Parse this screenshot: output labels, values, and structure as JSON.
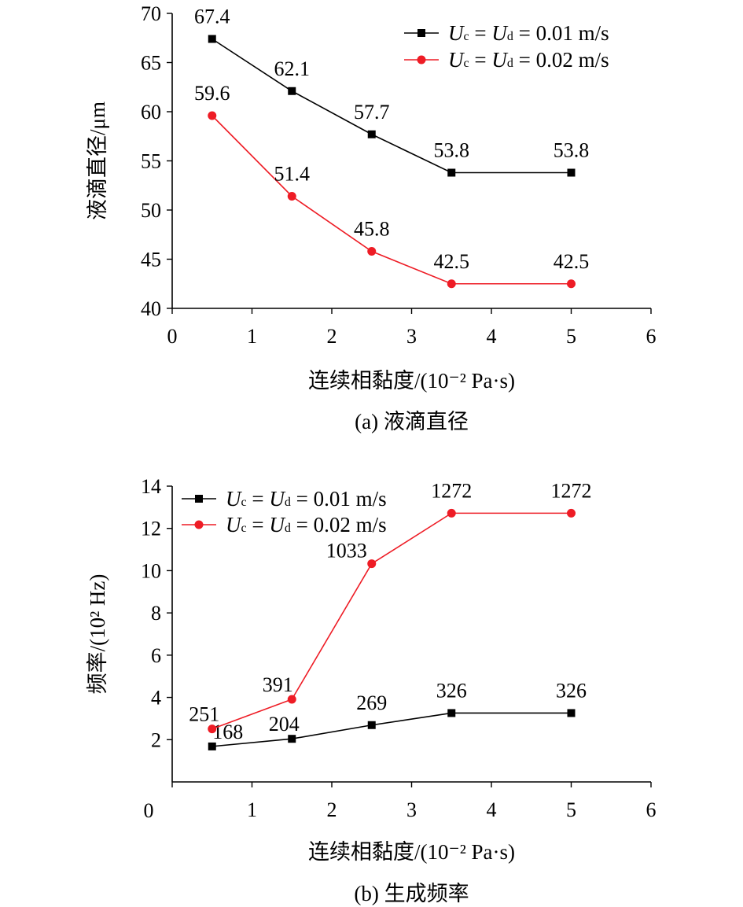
{
  "chart_data": [
    {
      "id": "a",
      "type": "line",
      "caption": "(a) 液滴直径",
      "xlabel": "连续相黏度/(10⁻² Pa·s)",
      "ylabel": "液滴直径/μm",
      "xlim": [
        0,
        6
      ],
      "ylim": [
        40,
        70
      ],
      "xticks": [
        0,
        1,
        2,
        3,
        4,
        5,
        6
      ],
      "yticks": [
        40,
        45,
        50,
        55,
        60,
        65,
        70
      ],
      "legend_position": "top-right",
      "x": [
        0.5,
        1.5,
        2.5,
        3.5,
        5
      ],
      "series": [
        {
          "key": "s1",
          "name": "U<sub>c</sub> = U<sub>d</sub> = 0.01 m/s",
          "legend_parts": [
            "U",
            "c",
            " = ",
            "U",
            "d",
            " = 0.01 m/s"
          ],
          "color": "#000000",
          "marker": "square",
          "values": [
            67.4,
            62.1,
            57.7,
            53.8,
            53.8
          ],
          "labels": [
            "67.4",
            "62.1",
            "57.7",
            "53.8",
            "53.8"
          ]
        },
        {
          "key": "s2",
          "name": "U<sub>c</sub> = U<sub>d</sub> = 0.02 m/s",
          "legend_parts": [
            "U",
            "c",
            " = ",
            "U",
            "d",
            " = 0.02 m/s"
          ],
          "color": "#ee1c25",
          "marker": "circle",
          "values": [
            59.6,
            51.4,
            45.8,
            42.5,
            42.5
          ],
          "labels": [
            "59.6",
            "51.4",
            "45.8",
            "42.5",
            "42.5"
          ]
        }
      ]
    },
    {
      "id": "b",
      "type": "line",
      "caption": "(b) 生成频率",
      "xlabel": "连续相黏度/(10⁻² Pa·s)",
      "ylabel": "频率/(10² Hz)",
      "xlim": [
        0,
        6
      ],
      "ylim": [
        0,
        14
      ],
      "xticks": [
        0,
        1,
        2,
        3,
        4,
        5,
        6
      ],
      "yticks": [
        2,
        4,
        6,
        8,
        10,
        12,
        14
      ],
      "x_tick_zero": "0",
      "legend_position": "top-left",
      "x": [
        0.5,
        1.5,
        2.5,
        3.5,
        5
      ],
      "series": [
        {
          "key": "s1",
          "name": "U<sub>c</sub> = U<sub>d</sub> = 0.01 m/s",
          "legend_parts": [
            "U",
            "c",
            " = ",
            "U",
            "d",
            " = 0.01 m/s"
          ],
          "color": "#000000",
          "marker": "square",
          "values": [
            1.68,
            2.04,
            2.69,
            3.26,
            3.26
          ],
          "labels": [
            "168",
            "204",
            "269",
            "326",
            "326"
          ]
        },
        {
          "key": "s2",
          "name": "U<sub>c</sub> = U<sub>d</sub> = 0.02 m/s",
          "legend_parts": [
            "U",
            "c",
            " = ",
            "U",
            "d",
            " = 0.02 m/s"
          ],
          "color": "#ee1c25",
          "marker": "circle",
          "values": [
            2.51,
            3.91,
            10.33,
            12.72,
            12.72
          ],
          "labels": [
            "251",
            "391",
            "1033",
            "1272",
            "1272"
          ]
        }
      ]
    }
  ]
}
